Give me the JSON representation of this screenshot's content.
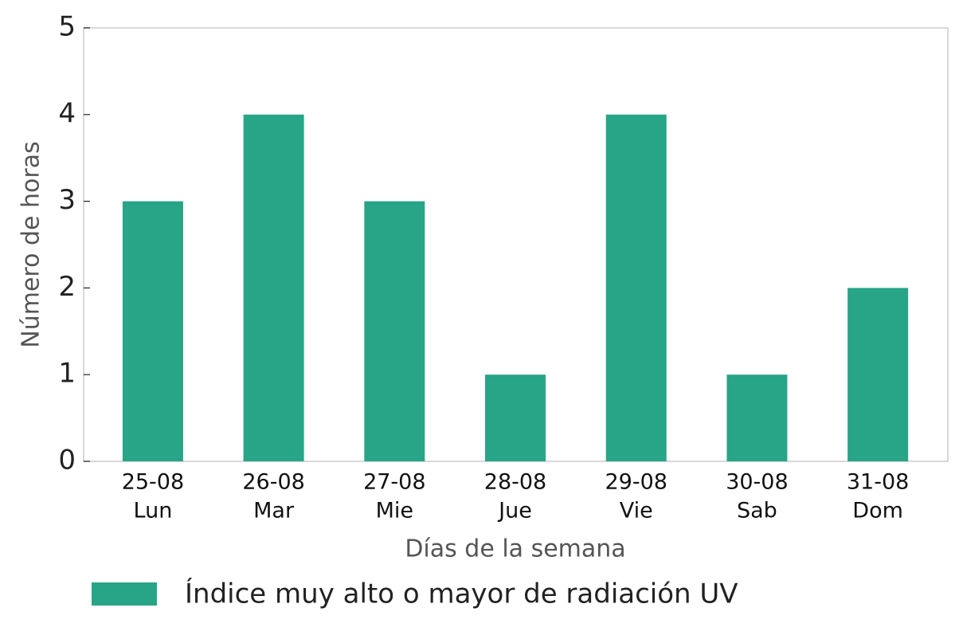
{
  "chart_data": {
    "type": "bar",
    "categories": [
      [
        "25-08",
        "Lun"
      ],
      [
        "26-08",
        "Mar"
      ],
      [
        "27-08",
        "Mie"
      ],
      [
        "28-08",
        "Jue"
      ],
      [
        "29-08",
        "Vie"
      ],
      [
        "30-08",
        "Sab"
      ],
      [
        "31-08",
        "Dom"
      ]
    ],
    "series": [
      {
        "name": "Índice muy alto o mayor de radiación UV",
        "color": "#27a586",
        "values": [
          3,
          4,
          3,
          1,
          4,
          1,
          2
        ]
      }
    ],
    "x_label": "Días de la semana",
    "y_label": "Número de horas",
    "ylim": [
      0,
      5
    ],
    "yticks": [
      0,
      1,
      2,
      3,
      4,
      5
    ],
    "legend": "bottom"
  }
}
